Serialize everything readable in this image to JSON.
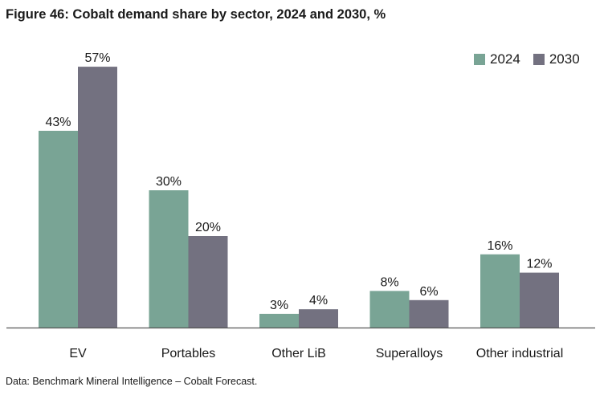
{
  "title": "Figure 46: Cobalt demand share by sector, 2024 and 2030, %",
  "source": "Data: Benchmark Mineral Intelligence – Cobalt Forecast.",
  "colors": {
    "series_2024": "#79a495",
    "series_2030": "#737180",
    "axis": "#555555"
  },
  "chart_data": {
    "type": "bar",
    "title": "Figure 46: Cobalt demand share by sector, 2024 and 2030, %",
    "xlabel": "",
    "ylabel": "",
    "ylim": [
      0,
      60
    ],
    "grid": false,
    "legend_position": "top-right",
    "categories": [
      "EV",
      "Portables",
      "Other LiB",
      "Superalloys",
      "Other industrial"
    ],
    "series": [
      {
        "name": "2024",
        "values": [
          43,
          30,
          3,
          8,
          16
        ],
        "labels": [
          "43%",
          "30%",
          "3%",
          "8%",
          "16%"
        ]
      },
      {
        "name": "2030",
        "values": [
          57,
          20,
          4,
          6,
          12
        ],
        "labels": [
          "57%",
          "20%",
          "4%",
          "6%",
          "12%"
        ]
      }
    ]
  }
}
